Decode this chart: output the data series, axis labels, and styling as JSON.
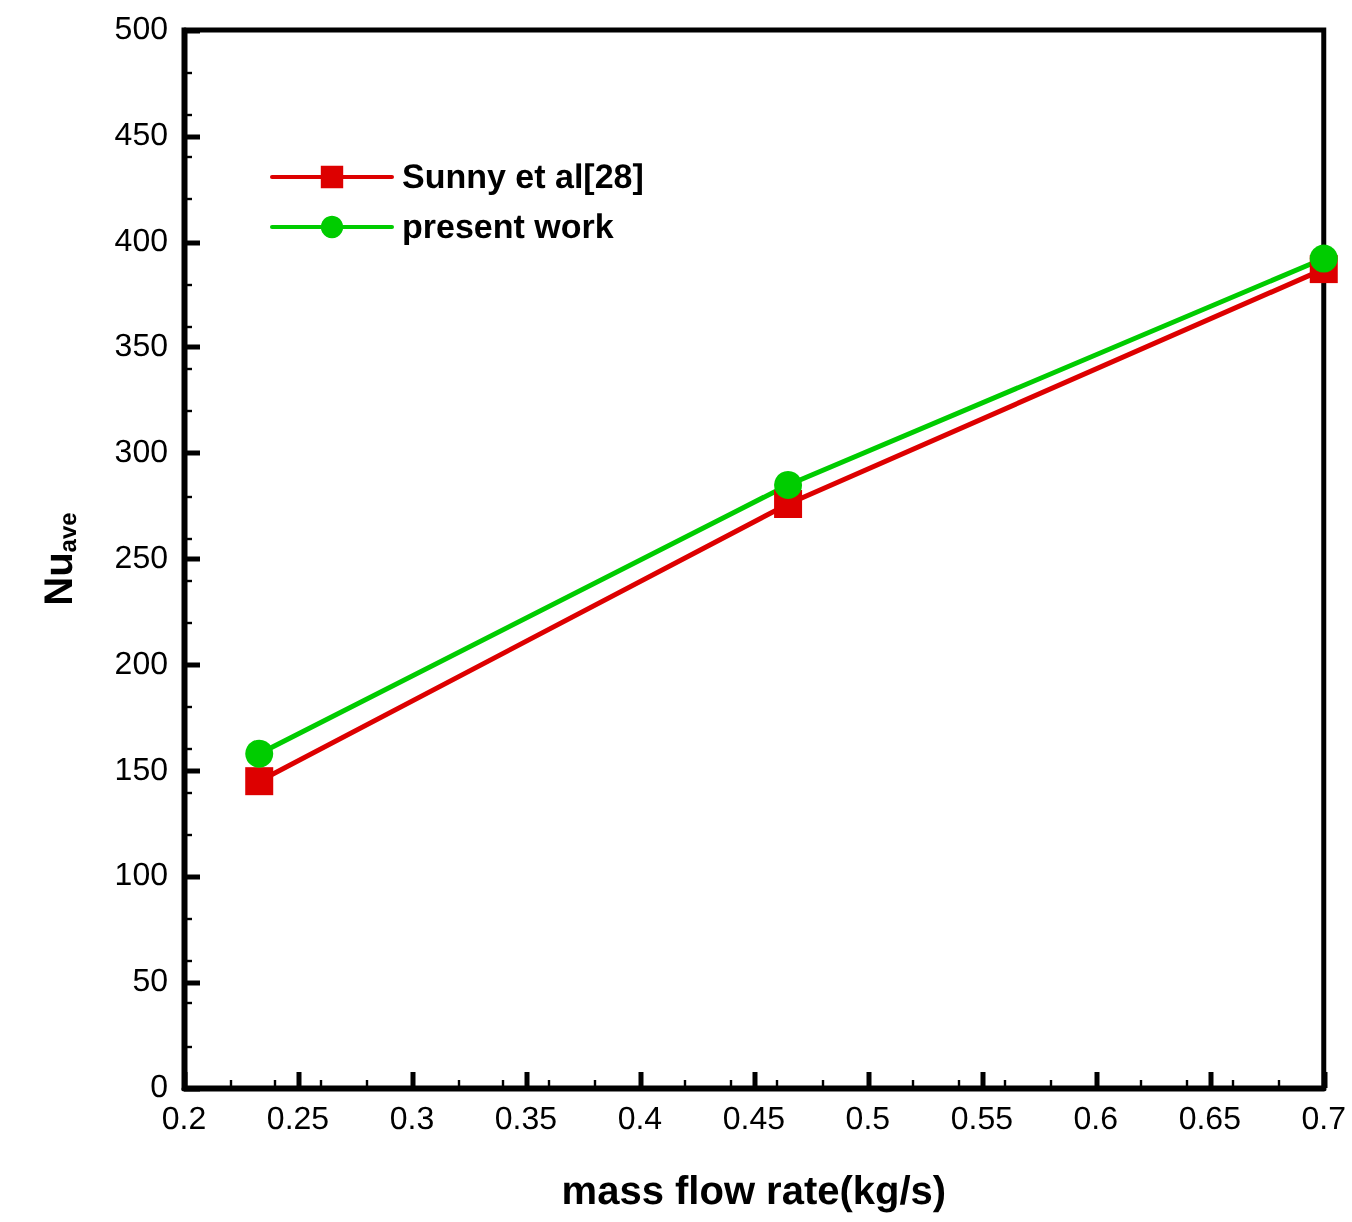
{
  "chart_data": {
    "type": "line",
    "xlabel": "mass flow rate(kg/s)",
    "ylabel": "Nu$_{ave}$",
    "x": [
      0.233,
      0.465,
      0.7
    ],
    "series": [
      {
        "name": "Sunny et al[28]",
        "color": "#dd0000",
        "marker": "square",
        "values": [
          145,
          276,
          387
        ]
      },
      {
        "name": "present work",
        "color": "#00cc00",
        "marker": "circle",
        "values": [
          158,
          285,
          392
        ]
      }
    ],
    "xlim": [
      0.2,
      0.7
    ],
    "xticks": [
      0.2,
      0.25,
      0.3,
      0.35,
      0.4,
      0.45,
      0.5,
      0.55,
      0.6,
      0.65,
      0.7
    ],
    "ylim": [
      0,
      500
    ],
    "yticks": [
      0,
      50,
      100,
      150,
      200,
      250,
      300,
      350,
      400,
      450,
      500
    ],
    "grid": false,
    "legend": "top left",
    "line_style": "solid"
  }
}
